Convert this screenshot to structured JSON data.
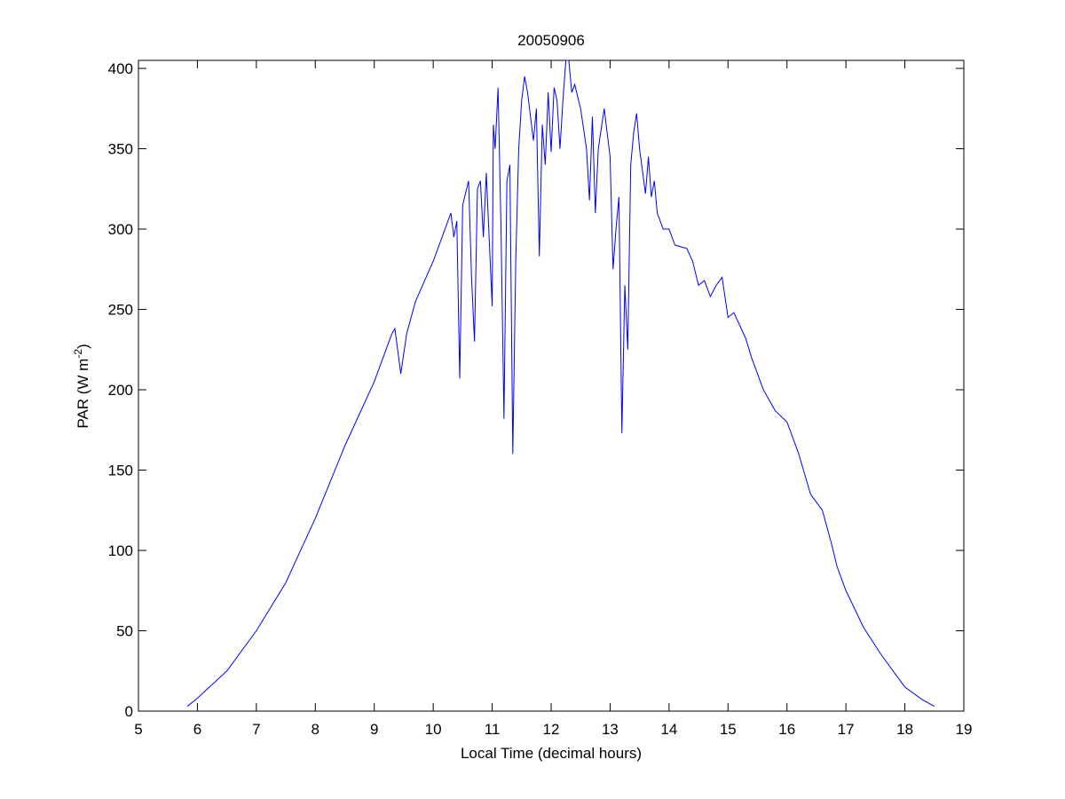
{
  "chart_data": {
    "type": "line",
    "title": "20050906",
    "xlabel": "Local Time (decimal hours)",
    "ylabel": {
      "text": "PAR (W m",
      "superscript": "-2",
      "close": ")"
    },
    "xlim": [
      5,
      19
    ],
    "xticks": [
      5,
      6,
      7,
      8,
      9,
      10,
      11,
      12,
      13,
      14,
      15,
      16,
      17,
      18,
      19
    ],
    "ylim": [
      0,
      405
    ],
    "yticks": [
      0,
      50,
      100,
      150,
      200,
      250,
      300,
      350,
      400
    ],
    "color": "#0000ff",
    "x": [
      5.83,
      6,
      6.5,
      7,
      7.5,
      8,
      8.5,
      9,
      9.3,
      9.35,
      9.45,
      9.55,
      9.7,
      10,
      10.2,
      10.3,
      10.35,
      10.4,
      10.45,
      10.5,
      10.6,
      10.65,
      10.7,
      10.75,
      10.8,
      10.85,
      10.9,
      11.0,
      11.02,
      11.05,
      11.1,
      11.15,
      11.2,
      11.25,
      11.3,
      11.35,
      11.4,
      11.45,
      11.5,
      11.55,
      11.6,
      11.7,
      11.75,
      11.8,
      11.85,
      11.9,
      11.95,
      12.0,
      12.05,
      12.1,
      12.15,
      12.2,
      12.25,
      12.3,
      12.35,
      12.4,
      12.5,
      12.6,
      12.65,
      12.7,
      12.75,
      12.8,
      12.9,
      13.0,
      13.05,
      13.1,
      13.15,
      13.2,
      13.25,
      13.3,
      13.35,
      13.4,
      13.45,
      13.5,
      13.6,
      13.65,
      13.7,
      13.75,
      13.8,
      13.9,
      14.0,
      14.1,
      14.3,
      14.4,
      14.5,
      14.6,
      14.7,
      14.8,
      14.9,
      15.0,
      15.1,
      15.2,
      15.3,
      15.4,
      15.6,
      15.8,
      16.0,
      16.2,
      16.4,
      16.6,
      16.75,
      16.85,
      17.0,
      17.3,
      17.6,
      18.0,
      18.3,
      18.5
    ],
    "values": [
      3,
      8,
      25,
      50,
      80,
      120,
      165,
      205,
      235,
      238,
      210,
      235,
      255,
      280,
      300,
      310,
      295,
      305,
      207,
      315,
      330,
      270,
      230,
      325,
      330,
      295,
      335,
      252,
      365,
      350,
      388,
      300,
      182,
      330,
      340,
      160,
      280,
      350,
      380,
      395,
      385,
      355,
      375,
      283,
      365,
      340,
      385,
      348,
      388,
      380,
      350,
      380,
      405,
      405,
      385,
      390,
      375,
      350,
      318,
      370,
      310,
      350,
      375,
      345,
      275,
      300,
      320,
      173,
      265,
      225,
      340,
      360,
      372,
      350,
      322,
      345,
      320,
      330,
      310,
      300,
      300,
      290,
      288,
      280,
      265,
      268,
      258,
      265,
      270,
      245,
      248,
      240,
      232,
      220,
      200,
      187,
      180,
      160,
      135,
      125,
      105,
      90,
      75,
      52,
      35,
      15,
      7,
      3
    ]
  }
}
